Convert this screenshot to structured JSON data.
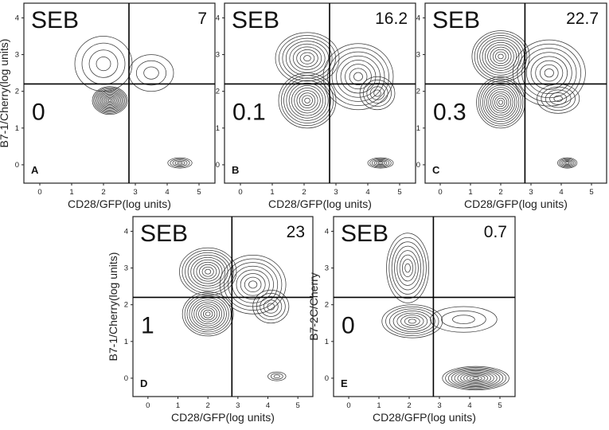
{
  "chart_data": [
    {
      "type": "contour",
      "panel_label": "A",
      "annotation": "SEB",
      "ylabel": "B7-1/Cherry(log units)",
      "xlabel": "CD28/GFP(log units)",
      "x_ticks": [
        "0",
        "1",
        "2",
        "3",
        "4",
        "5"
      ],
      "y_ticks": [
        "0",
        "1",
        "2",
        "3",
        "4"
      ],
      "xlim": [
        -0.5,
        5.5
      ],
      "ylim": [
        -0.5,
        4.4
      ],
      "gate": {
        "x": 2.8,
        "y": 2.2
      },
      "quadrant_values": {
        "upper_right": "7",
        "lower_left": "0"
      },
      "populations": [
        {
          "x": 2.2,
          "y": 1.75,
          "rx": 0.55,
          "ry": 0.38,
          "levels": 13
        },
        {
          "x": 2.0,
          "y": 2.75,
          "rx": 0.9,
          "ry": 0.75,
          "levels": 4
        },
        {
          "x": 3.5,
          "y": 2.5,
          "rx": 0.7,
          "ry": 0.5,
          "levels": 3
        },
        {
          "x": 4.4,
          "y": 0.05,
          "rx": 0.38,
          "ry": 0.14,
          "levels": 5
        }
      ]
    },
    {
      "type": "contour",
      "panel_label": "B",
      "annotation": "SEB",
      "ylabel": "",
      "xlabel": "CD28/GFP(log units)",
      "x_ticks": [
        "0",
        "1",
        "2",
        "3",
        "4",
        "5"
      ],
      "y_ticks": [
        "0",
        "1",
        "2",
        "3",
        "4"
      ],
      "xlim": [
        -0.5,
        5.5
      ],
      "ylim": [
        -0.5,
        4.4
      ],
      "gate": {
        "x": 2.8,
        "y": 2.2
      },
      "quadrant_values": {
        "upper_right": "16.2",
        "lower_left": "0.1"
      },
      "populations": [
        {
          "x": 2.1,
          "y": 1.75,
          "rx": 0.9,
          "ry": 0.75,
          "levels": 11
        },
        {
          "x": 2.1,
          "y": 2.9,
          "rx": 1.0,
          "ry": 0.7,
          "levels": 9
        },
        {
          "x": 3.7,
          "y": 2.4,
          "rx": 1.1,
          "ry": 0.9,
          "levels": 8
        },
        {
          "x": 4.3,
          "y": 1.95,
          "rx": 0.55,
          "ry": 0.45,
          "levels": 5
        },
        {
          "x": 4.4,
          "y": 0.05,
          "rx": 0.4,
          "ry": 0.14,
          "levels": 6
        }
      ]
    },
    {
      "type": "contour",
      "panel_label": "C",
      "annotation": "SEB",
      "ylabel": "",
      "xlabel": "CD28/GFP(log units)",
      "x_ticks": [
        "0",
        "1",
        "2",
        "3",
        "4",
        "5"
      ],
      "y_ticks": [
        "0",
        "1",
        "2",
        "3",
        "4"
      ],
      "xlim": [
        -0.5,
        5.5
      ],
      "ylim": [
        -0.5,
        4.4
      ],
      "gate": {
        "x": 2.8,
        "y": 2.2
      },
      "quadrant_values": {
        "upper_right": "22.7",
        "lower_left": "0.3"
      },
      "populations": [
        {
          "x": 2.0,
          "y": 1.7,
          "rx": 0.8,
          "ry": 0.7,
          "levels": 12
        },
        {
          "x": 2.0,
          "y": 2.95,
          "rx": 0.95,
          "ry": 0.7,
          "levels": 11
        },
        {
          "x": 3.6,
          "y": 2.5,
          "rx": 1.2,
          "ry": 0.9,
          "levels": 8
        },
        {
          "x": 3.9,
          "y": 1.8,
          "rx": 0.7,
          "ry": 0.4,
          "levels": 5
        },
        {
          "x": 4.2,
          "y": 0.05,
          "rx": 0.32,
          "ry": 0.14,
          "levels": 6
        }
      ]
    },
    {
      "type": "contour",
      "panel_label": "D",
      "annotation": "SEB",
      "ylabel": "B7-1/Cherry(log units)",
      "xlabel": "CD28/GFP(log units)",
      "x_ticks": [
        "0",
        "1",
        "2",
        "3",
        "4",
        "5"
      ],
      "y_ticks": [
        "0",
        "1",
        "2",
        "3",
        "4"
      ],
      "xlim": [
        -0.5,
        5.5
      ],
      "ylim": [
        -0.5,
        4.4
      ],
      "gate": {
        "x": 2.8,
        "y": 2.2
      },
      "quadrant_values": {
        "upper_right": "23",
        "lower_left": "1"
      },
      "populations": [
        {
          "x": 2.0,
          "y": 1.75,
          "rx": 0.85,
          "ry": 0.6,
          "levels": 11
        },
        {
          "x": 2.0,
          "y": 2.9,
          "rx": 0.95,
          "ry": 0.65,
          "levels": 10
        },
        {
          "x": 3.5,
          "y": 2.55,
          "rx": 1.1,
          "ry": 0.8,
          "levels": 8
        },
        {
          "x": 4.1,
          "y": 1.95,
          "rx": 0.6,
          "ry": 0.45,
          "levels": 5
        },
        {
          "x": 4.3,
          "y": 0.05,
          "rx": 0.3,
          "ry": 0.12,
          "levels": 3
        }
      ]
    },
    {
      "type": "contour",
      "panel_label": "E",
      "annotation": "SEB",
      "ylabel": "B7-2C/Cherry",
      "xlabel": "CD28/GFP(log units)",
      "x_ticks": [
        "0",
        "1",
        "2",
        "3",
        "4",
        "5"
      ],
      "y_ticks": [
        "0",
        "1",
        "2",
        "3",
        "4"
      ],
      "xlim": [
        -0.5,
        5.5
      ],
      "ylim": [
        -0.5,
        4.4
      ],
      "gate": {
        "x": 2.8,
        "y": 2.2
      },
      "quadrant_values": {
        "upper_right": "0.7",
        "lower_left": "0"
      },
      "populations": [
        {
          "x": 1.95,
          "y": 3.0,
          "rx": 0.7,
          "ry": 0.95,
          "levels": 8
        },
        {
          "x": 2.1,
          "y": 1.55,
          "rx": 1.0,
          "ry": 0.45,
          "levels": 8
        },
        {
          "x": 3.8,
          "y": 1.6,
          "rx": 1.1,
          "ry": 0.35,
          "levels": 3
        },
        {
          "x": 4.2,
          "y": 0.0,
          "rx": 1.1,
          "ry": 0.32,
          "levels": 11
        }
      ]
    }
  ]
}
